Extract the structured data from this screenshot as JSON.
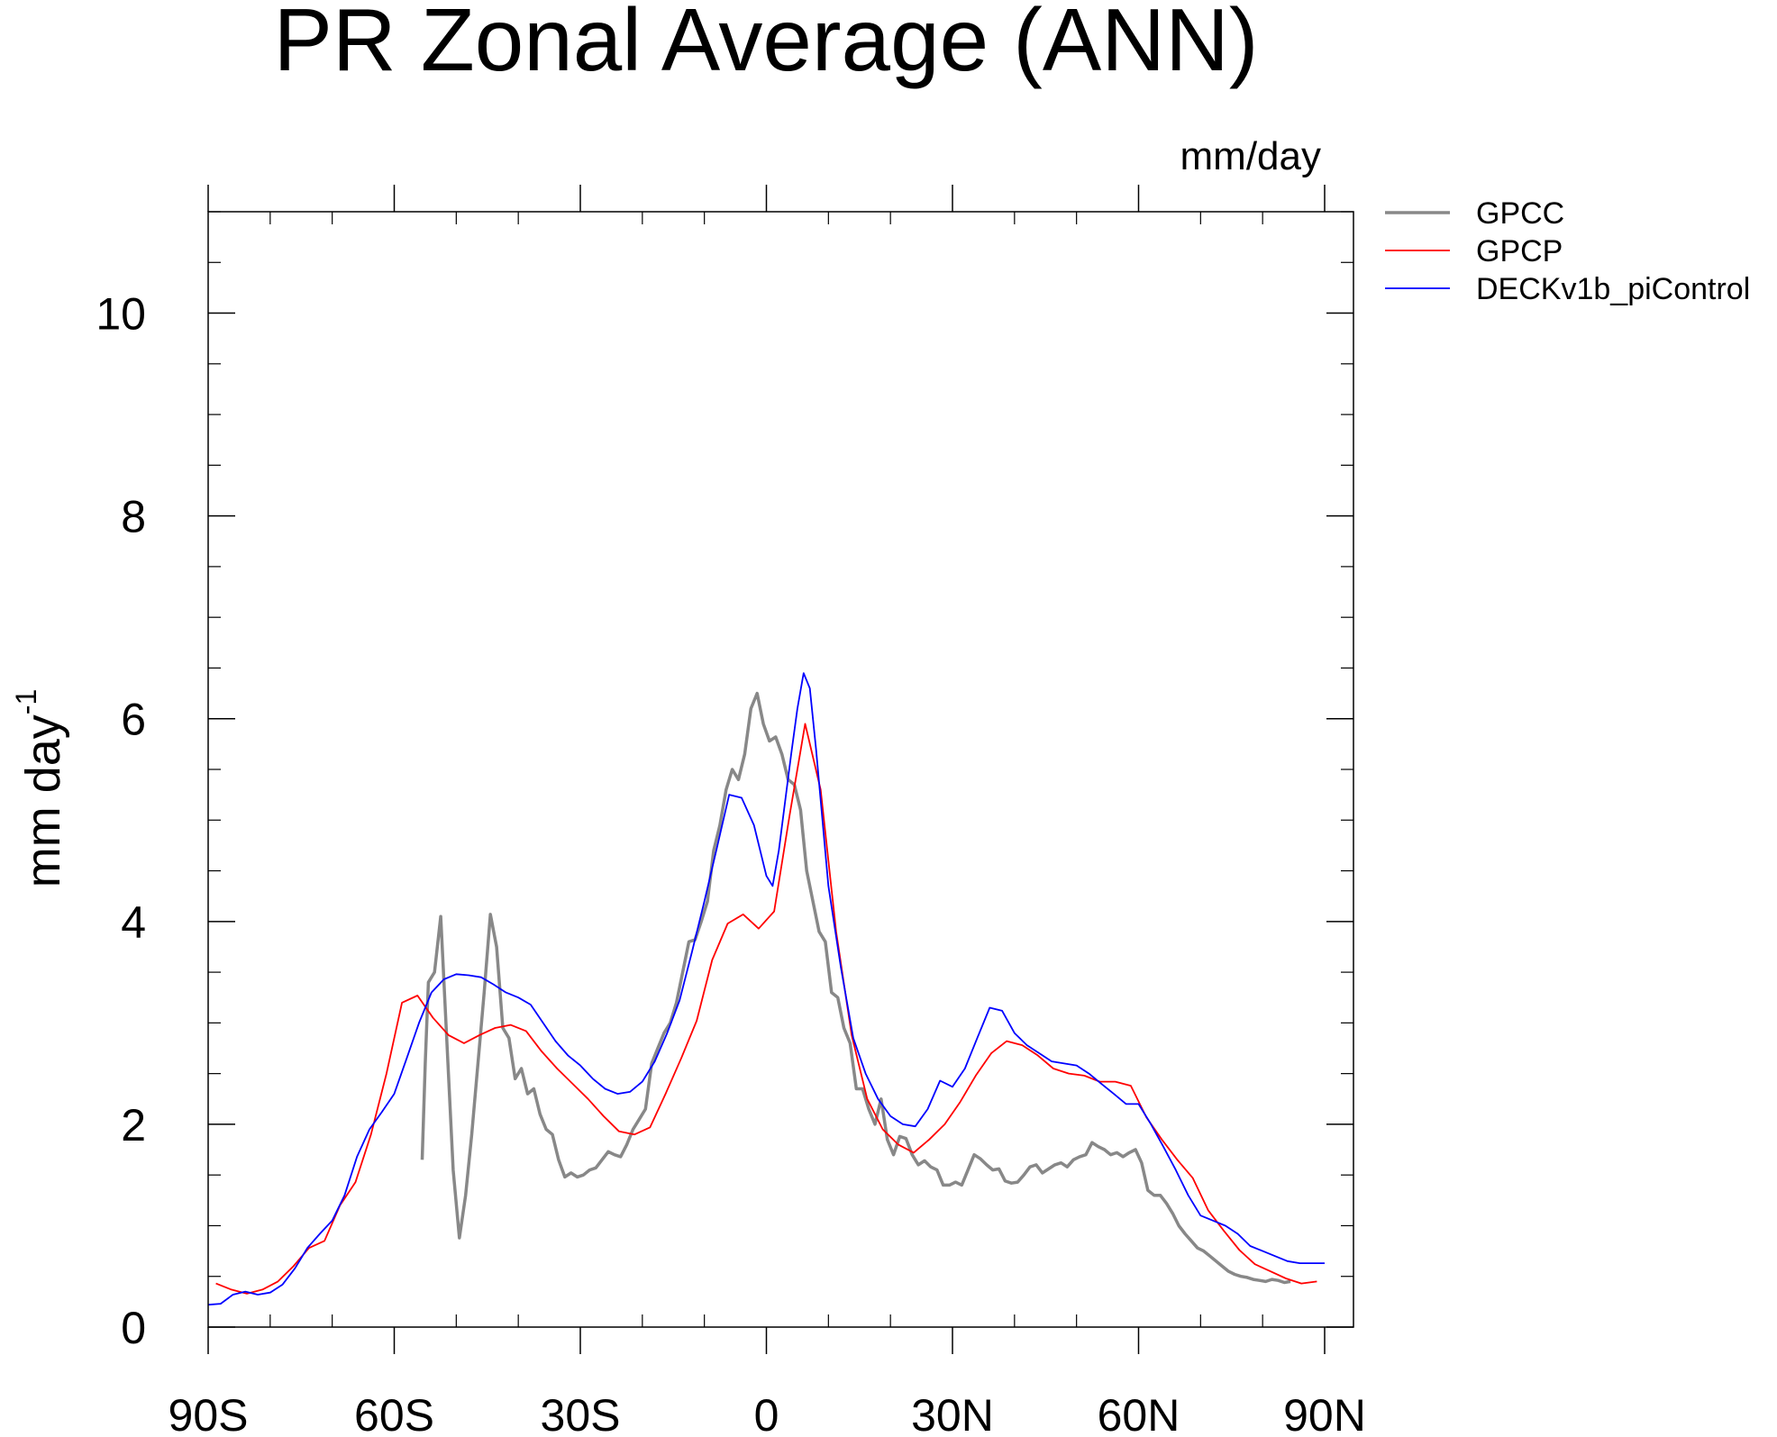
{
  "chart_data": {
    "type": "line",
    "title": "PR Zonal Average (ANN)",
    "units": "mm/day",
    "ylabel": "mm day",
    "ylabel_superscript": "-1",
    "xlabel": "",
    "xlim": [
      -90,
      90
    ],
    "ylim": [
      0,
      11
    ],
    "grid": false,
    "legend_position": "top-right",
    "xticks": [
      {
        "value": -90,
        "label": "90S"
      },
      {
        "value": -60,
        "label": "60S"
      },
      {
        "value": -30,
        "label": "30S"
      },
      {
        "value": 0,
        "label": "0"
      },
      {
        "value": 30,
        "label": "30N"
      },
      {
        "value": 60,
        "label": "60N"
      },
      {
        "value": 90,
        "label": "90N"
      }
    ],
    "yticks": [
      {
        "value": 0,
        "label": "0"
      },
      {
        "value": 2,
        "label": "2"
      },
      {
        "value": 4,
        "label": "4"
      },
      {
        "value": 6,
        "label": "6"
      },
      {
        "value": 8,
        "label": "8"
      },
      {
        "value": 10,
        "label": "10"
      }
    ],
    "series": [
      {
        "name": "GPCC",
        "color": "#888888",
        "points": [
          [
            -55.5,
            1.65
          ],
          [
            -55,
            2.6
          ],
          [
            -54.5,
            3.4
          ],
          [
            -53.5,
            3.5
          ],
          [
            -52.5,
            4.05
          ],
          [
            -51.5,
            2.8
          ],
          [
            -50.5,
            1.55
          ],
          [
            -49.5,
            0.88
          ],
          [
            -48.5,
            1.3
          ],
          [
            -47.5,
            1.9
          ],
          [
            -46.5,
            2.6
          ],
          [
            -45.5,
            3.3
          ],
          [
            -44.5,
            4.07
          ],
          [
            -43.5,
            3.75
          ],
          [
            -42.5,
            2.95
          ],
          [
            -41.5,
            2.85
          ],
          [
            -40.5,
            2.45
          ],
          [
            -39.5,
            2.55
          ],
          [
            -38.5,
            2.3
          ],
          [
            -37.5,
            2.35
          ],
          [
            -36.5,
            2.1
          ],
          [
            -35.5,
            1.95
          ],
          [
            -34.5,
            1.9
          ],
          [
            -33.5,
            1.65
          ],
          [
            -32.5,
            1.48
          ],
          [
            -31.5,
            1.52
          ],
          [
            -30.5,
            1.48
          ],
          [
            -29.5,
            1.5
          ],
          [
            -28.5,
            1.55
          ],
          [
            -27.5,
            1.57
          ],
          [
            -26.5,
            1.65
          ],
          [
            -25.5,
            1.73
          ],
          [
            -24.5,
            1.7
          ],
          [
            -23.5,
            1.68
          ],
          [
            -22.5,
            1.8
          ],
          [
            -21.5,
            1.95
          ],
          [
            -20.5,
            2.05
          ],
          [
            -19.5,
            2.15
          ],
          [
            -18.5,
            2.6
          ],
          [
            -17.5,
            2.75
          ],
          [
            -16.5,
            2.9
          ],
          [
            -15.5,
            3.0
          ],
          [
            -14.5,
            3.2
          ],
          [
            -13.5,
            3.5
          ],
          [
            -12.5,
            3.8
          ],
          [
            -11.5,
            3.82
          ],
          [
            -10.5,
            4.0
          ],
          [
            -9.5,
            4.2
          ],
          [
            -8.5,
            4.7
          ],
          [
            -7.5,
            4.95
          ],
          [
            -6.5,
            5.3
          ],
          [
            -5.5,
            5.5
          ],
          [
            -4.5,
            5.4
          ],
          [
            -3.5,
            5.65
          ],
          [
            -2.5,
            6.1
          ],
          [
            -1.5,
            6.25
          ],
          [
            -0.5,
            5.95
          ],
          [
            0.5,
            5.78
          ],
          [
            1.5,
            5.82
          ],
          [
            2.5,
            5.65
          ],
          [
            3.5,
            5.4
          ],
          [
            4.5,
            5.35
          ],
          [
            5.5,
            5.1
          ],
          [
            6.5,
            4.5
          ],
          [
            7.5,
            4.2
          ],
          [
            8.5,
            3.9
          ],
          [
            9.5,
            3.8
          ],
          [
            10.5,
            3.3
          ],
          [
            11.5,
            3.25
          ],
          [
            12.5,
            2.95
          ],
          [
            13.5,
            2.8
          ],
          [
            14.5,
            2.35
          ],
          [
            15.5,
            2.35
          ],
          [
            16.5,
            2.15
          ],
          [
            17.5,
            2.0
          ],
          [
            18.5,
            2.25
          ],
          [
            19.5,
            1.85
          ],
          [
            20.5,
            1.7
          ],
          [
            21.5,
            1.88
          ],
          [
            22.5,
            1.86
          ],
          [
            23.5,
            1.7
          ],
          [
            24.5,
            1.6
          ],
          [
            25.5,
            1.64
          ],
          [
            26.5,
            1.58
          ],
          [
            27.5,
            1.55
          ],
          [
            28.5,
            1.4
          ],
          [
            29.5,
            1.4
          ],
          [
            30.5,
            1.43
          ],
          [
            31.5,
            1.4
          ],
          [
            32.5,
            1.55
          ],
          [
            33.5,
            1.7
          ],
          [
            34.5,
            1.66
          ],
          [
            35.5,
            1.6
          ],
          [
            36.5,
            1.55
          ],
          [
            37.5,
            1.56
          ],
          [
            38.5,
            1.44
          ],
          [
            39.5,
            1.42
          ],
          [
            40.5,
            1.43
          ],
          [
            41.5,
            1.5
          ],
          [
            42.5,
            1.58
          ],
          [
            43.5,
            1.6
          ],
          [
            44.5,
            1.52
          ],
          [
            45.5,
            1.56
          ],
          [
            46.5,
            1.6
          ],
          [
            47.5,
            1.62
          ],
          [
            48.5,
            1.58
          ],
          [
            49.5,
            1.65
          ],
          [
            50.5,
            1.68
          ],
          [
            51.5,
            1.7
          ],
          [
            52.5,
            1.82
          ],
          [
            53.5,
            1.78
          ],
          [
            54.5,
            1.75
          ],
          [
            55.5,
            1.7
          ],
          [
            56.5,
            1.72
          ],
          [
            57.5,
            1.68
          ],
          [
            58.5,
            1.72
          ],
          [
            59.5,
            1.75
          ],
          [
            60.5,
            1.62
          ],
          [
            61.5,
            1.35
          ],
          [
            62.5,
            1.3
          ],
          [
            63.5,
            1.3
          ],
          [
            64.5,
            1.22
          ],
          [
            65.5,
            1.12
          ],
          [
            66.5,
            1.0
          ],
          [
            67.5,
            0.92
          ],
          [
            68.5,
            0.85
          ],
          [
            69.5,
            0.78
          ],
          [
            70.5,
            0.75
          ],
          [
            71.5,
            0.7
          ],
          [
            72.5,
            0.65
          ],
          [
            73.5,
            0.6
          ],
          [
            74.5,
            0.55
          ],
          [
            75.5,
            0.52
          ],
          [
            76.5,
            0.5
          ],
          [
            77.5,
            0.49
          ],
          [
            78.5,
            0.47
          ],
          [
            79.5,
            0.46
          ],
          [
            80.5,
            0.45
          ],
          [
            81.5,
            0.47
          ],
          [
            82.5,
            0.46
          ],
          [
            83.5,
            0.44
          ],
          [
            84.5,
            0.45
          ]
        ]
      },
      {
        "name": "GPCP",
        "color": "#ff0000",
        "points": [
          [
            -88.75,
            0.43
          ],
          [
            -86.25,
            0.37
          ],
          [
            -83.75,
            0.33
          ],
          [
            -81.25,
            0.37
          ],
          [
            -78.75,
            0.45
          ],
          [
            -76.25,
            0.6
          ],
          [
            -73.75,
            0.78
          ],
          [
            -71.25,
            0.85
          ],
          [
            -68.75,
            1.2
          ],
          [
            -66.25,
            1.43
          ],
          [
            -63.75,
            1.9
          ],
          [
            -61.25,
            2.5
          ],
          [
            -58.75,
            3.2
          ],
          [
            -56.25,
            3.27
          ],
          [
            -53.75,
            3.05
          ],
          [
            -51.25,
            2.88
          ],
          [
            -48.75,
            2.8
          ],
          [
            -46.25,
            2.88
          ],
          [
            -43.75,
            2.95
          ],
          [
            -41.25,
            2.98
          ],
          [
            -38.75,
            2.92
          ],
          [
            -36.25,
            2.72
          ],
          [
            -33.75,
            2.55
          ],
          [
            -31.25,
            2.4
          ],
          [
            -28.75,
            2.25
          ],
          [
            -26.25,
            2.08
          ],
          [
            -23.75,
            1.93
          ],
          [
            -21.25,
            1.9
          ],
          [
            -18.75,
            1.97
          ],
          [
            -16.25,
            2.3
          ],
          [
            -13.75,
            2.65
          ],
          [
            -11.25,
            3.02
          ],
          [
            -8.75,
            3.62
          ],
          [
            -6.25,
            3.98
          ],
          [
            -3.75,
            4.07
          ],
          [
            -1.25,
            3.93
          ],
          [
            1.25,
            4.1
          ],
          [
            3.75,
            5.05
          ],
          [
            6.25,
            5.95
          ],
          [
            8.75,
            5.3
          ],
          [
            11.25,
            3.9
          ],
          [
            13.75,
            2.88
          ],
          [
            16.25,
            2.25
          ],
          [
            18.75,
            1.95
          ],
          [
            21.25,
            1.8
          ],
          [
            23.75,
            1.72
          ],
          [
            26.25,
            1.85
          ],
          [
            28.75,
            2.0
          ],
          [
            31.25,
            2.22
          ],
          [
            33.75,
            2.48
          ],
          [
            36.25,
            2.7
          ],
          [
            38.75,
            2.82
          ],
          [
            41.25,
            2.78
          ],
          [
            43.75,
            2.68
          ],
          [
            46.25,
            2.55
          ],
          [
            48.75,
            2.5
          ],
          [
            51.25,
            2.48
          ],
          [
            53.75,
            2.42
          ],
          [
            56.25,
            2.42
          ],
          [
            58.75,
            2.38
          ],
          [
            61.25,
            2.07
          ],
          [
            63.75,
            1.85
          ],
          [
            66.25,
            1.65
          ],
          [
            68.75,
            1.47
          ],
          [
            71.25,
            1.15
          ],
          [
            73.75,
            0.95
          ],
          [
            76.25,
            0.76
          ],
          [
            78.75,
            0.62
          ],
          [
            81.25,
            0.55
          ],
          [
            83.75,
            0.48
          ],
          [
            86.25,
            0.43
          ],
          [
            88.75,
            0.45
          ]
        ]
      },
      {
        "name": "DECKv1b_piControl",
        "color": "#0000ff",
        "points": [
          [
            -90,
            0.22
          ],
          [
            -88,
            0.23
          ],
          [
            -86,
            0.32
          ],
          [
            -84,
            0.35
          ],
          [
            -82,
            0.32
          ],
          [
            -80,
            0.34
          ],
          [
            -78,
            0.42
          ],
          [
            -76,
            0.58
          ],
          [
            -74,
            0.78
          ],
          [
            -72,
            0.92
          ],
          [
            -70,
            1.05
          ],
          [
            -68,
            1.3
          ],
          [
            -66,
            1.68
          ],
          [
            -64,
            1.95
          ],
          [
            -62,
            2.12
          ],
          [
            -60,
            2.3
          ],
          [
            -58,
            2.65
          ],
          [
            -56,
            3.0
          ],
          [
            -54,
            3.3
          ],
          [
            -52,
            3.43
          ],
          [
            -50,
            3.48
          ],
          [
            -48,
            3.47
          ],
          [
            -46,
            3.45
          ],
          [
            -44,
            3.38
          ],
          [
            -42,
            3.3
          ],
          [
            -40,
            3.25
          ],
          [
            -38,
            3.18
          ],
          [
            -36,
            3.0
          ],
          [
            -34,
            2.82
          ],
          [
            -32,
            2.68
          ],
          [
            -30,
            2.58
          ],
          [
            -28,
            2.45
          ],
          [
            -26,
            2.35
          ],
          [
            -24,
            2.3
          ],
          [
            -22,
            2.32
          ],
          [
            -20,
            2.42
          ],
          [
            -18,
            2.62
          ],
          [
            -16,
            2.9
          ],
          [
            -14,
            3.22
          ],
          [
            -12,
            3.7
          ],
          [
            -10,
            4.2
          ],
          [
            -8,
            4.72
          ],
          [
            -6,
            5.25
          ],
          [
            -4,
            5.22
          ],
          [
            -2,
            4.95
          ],
          [
            0,
            4.45
          ],
          [
            1,
            4.35
          ],
          [
            2,
            4.7
          ],
          [
            4,
            5.65
          ],
          [
            5,
            6.1
          ],
          [
            6,
            6.45
          ],
          [
            7,
            6.3
          ],
          [
            8,
            5.7
          ],
          [
            10,
            4.35
          ],
          [
            12,
            3.55
          ],
          [
            14,
            2.85
          ],
          [
            16,
            2.5
          ],
          [
            18,
            2.25
          ],
          [
            20,
            2.08
          ],
          [
            22,
            2.0
          ],
          [
            24,
            1.98
          ],
          [
            26,
            2.15
          ],
          [
            28,
            2.43
          ],
          [
            30,
            2.37
          ],
          [
            32,
            2.55
          ],
          [
            34,
            2.85
          ],
          [
            36,
            3.15
          ],
          [
            38,
            3.12
          ],
          [
            40,
            2.9
          ],
          [
            42,
            2.78
          ],
          [
            44,
            2.7
          ],
          [
            46,
            2.62
          ],
          [
            48,
            2.6
          ],
          [
            50,
            2.58
          ],
          [
            52,
            2.5
          ],
          [
            54,
            2.4
          ],
          [
            56,
            2.3
          ],
          [
            58,
            2.2
          ],
          [
            60,
            2.2
          ],
          [
            62,
            2.0
          ],
          [
            64,
            1.78
          ],
          [
            66,
            1.55
          ],
          [
            68,
            1.3
          ],
          [
            70,
            1.1
          ],
          [
            72,
            1.05
          ],
          [
            74,
            1.0
          ],
          [
            76,
            0.92
          ],
          [
            78,
            0.8
          ],
          [
            80,
            0.75
          ],
          [
            82,
            0.7
          ],
          [
            84,
            0.65
          ],
          [
            86,
            0.63
          ],
          [
            88,
            0.63
          ],
          [
            90,
            0.63
          ]
        ]
      }
    ]
  }
}
